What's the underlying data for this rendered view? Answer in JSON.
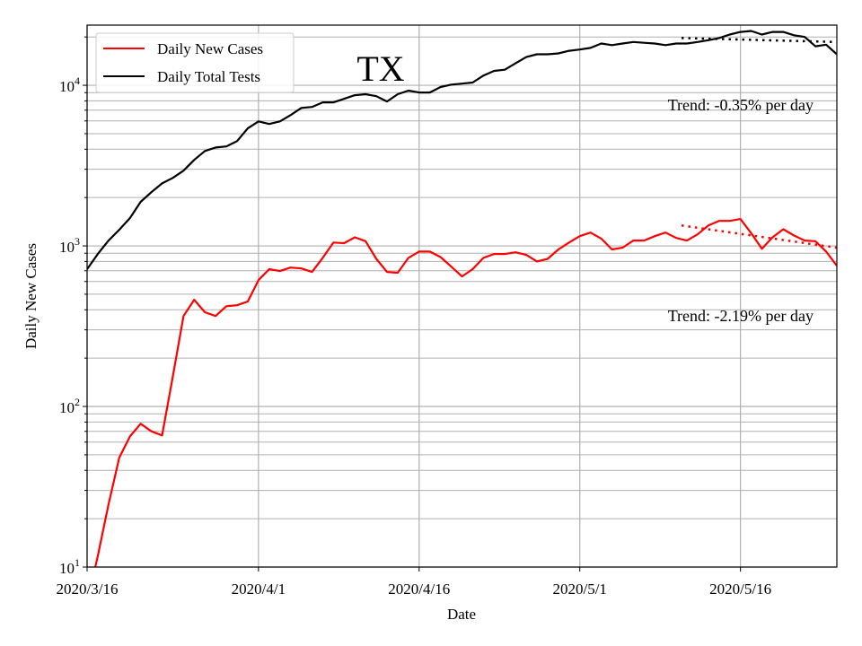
{
  "chart_data": {
    "type": "line",
    "title": "TX",
    "xlabel": "Date",
    "ylabel": "Daily New Cases",
    "yscale": "log",
    "ylim": [
      10,
      23700
    ],
    "x_start_date": "2020/3/16",
    "x_days_range": [
      0,
      70
    ],
    "x_ticks": [
      {
        "day": 0,
        "label": "2020/3/16"
      },
      {
        "day": 16,
        "label": "2020/4/1"
      },
      {
        "day": 31,
        "label": "2020/4/16"
      },
      {
        "day": 46,
        "label": "2020/5/1"
      },
      {
        "day": 61,
        "label": "2020/5/16"
      }
    ],
    "y_ticks": [
      {
        "value": 10,
        "base": "10",
        "exp": "1"
      },
      {
        "value": 100,
        "base": "10",
        "exp": "2"
      },
      {
        "value": 1000,
        "base": "10",
        "exp": "3"
      },
      {
        "value": 10000,
        "base": "10",
        "exp": "4"
      }
    ],
    "grid": true,
    "legend_position": "top-left",
    "series": [
      {
        "name": "Daily New Cases",
        "color": "#ff0000",
        "values": [
          6,
          11.7,
          24.6,
          48,
          65,
          78,
          70,
          66,
          153,
          366,
          462,
          386,
          366,
          421,
          427,
          450,
          612,
          716,
          697,
          733,
          724,
          688,
          842,
          1050,
          1040,
          1130,
          1070,
          830,
          688,
          680,
          842,
          922,
          922,
          852,
          742,
          645,
          716,
          842,
          890,
          890,
          912,
          879,
          800,
          830,
          950,
          1050,
          1150,
          1210,
          1110,
          950,
          975,
          1080,
          1080,
          1150,
          1210,
          1120,
          1080,
          1180,
          1340,
          1430,
          1430,
          1470,
          1200,
          960,
          1130,
          1270,
          1160,
          1080,
          1070,
          922,
          752
        ]
      },
      {
        "name": "Daily Total Tests",
        "color": "#000000",
        "values": [
          716,
          890,
          1080,
          1260,
          1490,
          1880,
          2160,
          2450,
          2650,
          2940,
          3430,
          3900,
          4100,
          4160,
          4490,
          5390,
          5960,
          5740,
          5960,
          6520,
          7230,
          7330,
          7830,
          7830,
          8240,
          8680,
          8800,
          8560,
          7930,
          8800,
          9270,
          9020,
          9020,
          9750,
          10100,
          10250,
          10400,
          11500,
          12300,
          12500,
          13700,
          15000,
          15600,
          15600,
          15800,
          16400,
          16700,
          17100,
          18200,
          17800,
          18200,
          18600,
          18400,
          18200,
          17800,
          18200,
          18200,
          18600,
          19100,
          19700,
          20700,
          21500,
          21800,
          20700,
          21500,
          21500,
          20500,
          20000,
          17500,
          17900,
          15600
        ]
      }
    ],
    "trends": [
      {
        "series": "Daily Total Tests",
        "color": "#000000",
        "start_day": 55.5,
        "end_day": 70,
        "start_value": 19700,
        "end_value": 18600,
        "label": "Trend: -0.35% per day"
      },
      {
        "series": "Daily New Cases",
        "color": "#ff0000",
        "start_day": 55.5,
        "end_day": 70,
        "start_value": 1340,
        "end_value": 975,
        "label": "Trend: -2.19% per day"
      }
    ]
  }
}
